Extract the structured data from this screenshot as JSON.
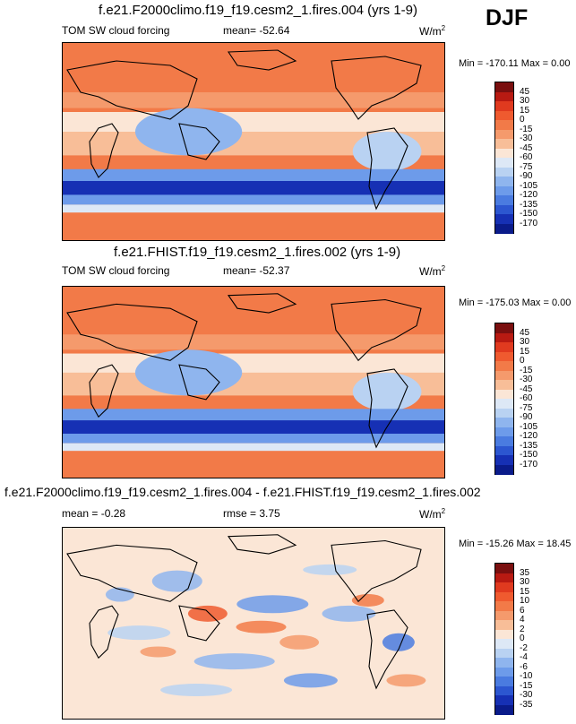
{
  "season": "DJF",
  "units_base": "W/m",
  "units_exp": "2",
  "panels": [
    {
      "title": "f.e21.F2000climo.f19_f19.cesm2_1.fires.004 (yrs 1-9)",
      "variable": "TOM SW cloud forcing",
      "stats": "mean= -52.64",
      "minmax": "Min = -170.11 Max =   0.00"
    },
    {
      "title": "f.e21.FHIST.f19_f19.cesm2_1.fires.002 (yrs 1-9)",
      "variable": "TOM SW cloud forcing",
      "stats": "mean= -52.37",
      "minmax": "Min = -175.03 Max =   0.00"
    },
    {
      "title": "f.e21.F2000climo.f19_f19.cesm2_1.fires.004 - f.e21.FHIST.f19_f19.cesm2_1.fires.002",
      "variable": "mean =  -0.28",
      "stats": "rmse =   3.75",
      "minmax": "Min = -15.26 Max =  18.45"
    }
  ],
  "chart_data": [
    {
      "type": "heatmap",
      "title": "f.e21.F2000climo.f19_f19.cesm2_1.fires.004 (yrs 1-9)",
      "variable": "TOM SW cloud forcing",
      "mean": -52.64,
      "min": -170.11,
      "max": 0.0,
      "colorbar_levels": [
        "45",
        "30",
        "15",
        "0",
        "-15",
        "-30",
        "-45",
        "-60",
        "-75",
        "-90",
        "-105",
        "-120",
        "-135",
        "-150",
        "-170"
      ],
      "colors": [
        "#7a0f0f",
        "#b81a12",
        "#e03a1f",
        "#ef5a2f",
        "#f27a48",
        "#f59a6c",
        "#f8be98",
        "#fbe6d6",
        "#dde8f6",
        "#b9d2f2",
        "#8fb5ee",
        "#6d9bea",
        "#4a7be0",
        "#2c56d0",
        "#1630b4",
        "#0a1b8a"
      ]
    },
    {
      "type": "heatmap",
      "title": "f.e21.FHIST.f19_f19.cesm2_1.fires.002 (yrs 1-9)",
      "variable": "TOM SW cloud forcing",
      "mean": -52.37,
      "min": -175.03,
      "max": 0.0,
      "colorbar_levels": [
        "45",
        "30",
        "15",
        "0",
        "-15",
        "-30",
        "-45",
        "-60",
        "-75",
        "-90",
        "-105",
        "-120",
        "-135",
        "-150",
        "-170"
      ],
      "colors": [
        "#7a0f0f",
        "#b81a12",
        "#e03a1f",
        "#ef5a2f",
        "#f27a48",
        "#f59a6c",
        "#f8be98",
        "#fbe6d6",
        "#dde8f6",
        "#b9d2f2",
        "#8fb5ee",
        "#6d9bea",
        "#4a7be0",
        "#2c56d0",
        "#1630b4",
        "#0a1b8a"
      ]
    },
    {
      "type": "heatmap",
      "title": "f.e21.F2000climo.f19_f19.cesm2_1.fires.004 - f.e21.FHIST.f19_f19.cesm2_1.fires.002",
      "mean": -0.28,
      "rmse": 3.75,
      "min": -15.26,
      "max": 18.45,
      "colorbar_levels": [
        "35",
        "30",
        "15",
        "10",
        "6",
        "4",
        "2",
        "0",
        "-2",
        "-4",
        "-6",
        "-10",
        "-15",
        "-30",
        "-35"
      ],
      "colors": [
        "#7a0f0f",
        "#b81a12",
        "#e03a1f",
        "#ef5a2f",
        "#f27a48",
        "#f59a6c",
        "#f8be98",
        "#fbe6d6",
        "#dde8f6",
        "#b9d2f2",
        "#8fb5ee",
        "#6d9bea",
        "#4a7be0",
        "#2c56d0",
        "#1630b4",
        "#0a1b8a"
      ]
    }
  ]
}
